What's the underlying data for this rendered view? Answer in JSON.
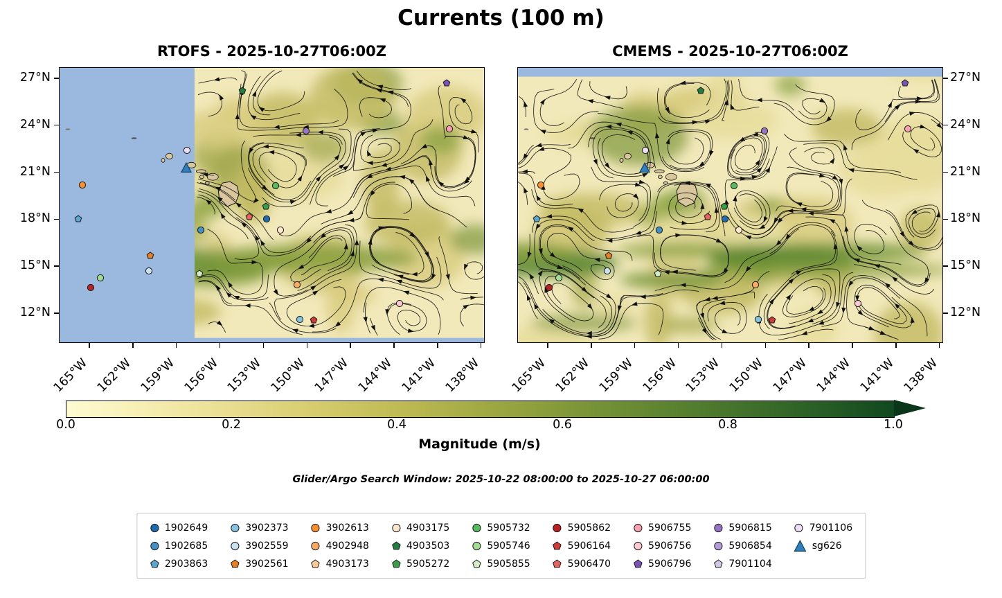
{
  "title": "Currents (100 m)",
  "maps": {
    "left": {
      "name": "RTOFS",
      "title": "RTOFS - 2025-10-27T06:00Z"
    },
    "right": {
      "name": "CMEMS",
      "title": "CMEMS - 2025-10-27T06:00Z"
    }
  },
  "axes": {
    "lat_ticks": [
      "27°N",
      "24°N",
      "21°N",
      "18°N",
      "15°N",
      "12°N"
    ],
    "lon_ticks": [
      "165°W",
      "162°W",
      "159°W",
      "156°W",
      "153°W",
      "150°W",
      "147°W",
      "144°W",
      "141°W",
      "138°W"
    ]
  },
  "colorbar": {
    "label": "Magnitude (m/s)",
    "ticks": [
      "0.0",
      "0.2",
      "0.4",
      "0.6",
      "0.8",
      "1.0"
    ],
    "min_color": "#fefbd2",
    "max_color": "#11481f"
  },
  "search_window": "Glider/Argo Search Window: 2025-10-22 08:00:00 to 2025-10-27 06:00:00",
  "colors": {
    "ocean_mask": "#9bb8de",
    "land": "#d9c69c",
    "streamline": "#111111"
  },
  "legend": {
    "entries": [
      {
        "id": "1902649",
        "shape": "circle",
        "color": "#1d6cb1"
      },
      {
        "id": "1902685",
        "shape": "circle",
        "color": "#4191c6"
      },
      {
        "id": "2903863",
        "shape": "pentagon",
        "color": "#5aa7d2"
      },
      {
        "id": "3902373",
        "shape": "circle",
        "color": "#85c3e2"
      },
      {
        "id": "3902559",
        "shape": "circle",
        "color": "#c8e2f0"
      },
      {
        "id": "3902561",
        "shape": "pentagon",
        "color": "#e87e1e"
      },
      {
        "id": "3902613",
        "shape": "circle",
        "color": "#fd8e28"
      },
      {
        "id": "4902948",
        "shape": "circle",
        "color": "#fdaa5e"
      },
      {
        "id": "4903173",
        "shape": "pentagon",
        "color": "#fdc992"
      },
      {
        "id": "4903175",
        "shape": "circle",
        "color": "#fee7cd"
      },
      {
        "id": "4903503",
        "shape": "pentagon",
        "color": "#1e8040"
      },
      {
        "id": "5905272",
        "shape": "pentagon",
        "color": "#35a048"
      },
      {
        "id": "5905732",
        "shape": "circle",
        "color": "#55bd5f"
      },
      {
        "id": "5905746",
        "shape": "circle",
        "color": "#a2db93"
      },
      {
        "id": "5905855",
        "shape": "pentagon",
        "color": "#d4eec3"
      },
      {
        "id": "5905862",
        "shape": "circle",
        "color": "#bc2020"
      },
      {
        "id": "5906164",
        "shape": "pentagon",
        "color": "#d23a3a"
      },
      {
        "id": "5906470",
        "shape": "pentagon",
        "color": "#e66361"
      },
      {
        "id": "5906755",
        "shape": "circle",
        "color": "#f9a0b0"
      },
      {
        "id": "5906756",
        "shape": "circle",
        "color": "#fcc8d1"
      },
      {
        "id": "5906796",
        "shape": "pentagon",
        "color": "#7c52b8"
      },
      {
        "id": "5906815",
        "shape": "circle",
        "color": "#9673c9"
      },
      {
        "id": "5906854",
        "shape": "circle",
        "color": "#b59bd9"
      },
      {
        "id": "7901104",
        "shape": "pentagon",
        "color": "#d5c5e8"
      },
      {
        "id": "7901106",
        "shape": "circle",
        "color": "#ecdff5"
      },
      {
        "id": "sg626",
        "shape": "triangle",
        "color": "#2f7fbe"
      }
    ]
  },
  "markers": [
    {
      "id": "5906796",
      "fx": 0.909,
      "fy": 0.055
    },
    {
      "id": "4903503",
      "fx": 0.429,
      "fy": 0.083
    },
    {
      "id": "5906815",
      "fx": 0.579,
      "fy": 0.229
    },
    {
      "id": "5906755",
      "fx": 0.915,
      "fy": 0.221
    },
    {
      "id": "7901106",
      "fx": 0.299,
      "fy": 0.299
    },
    {
      "id": "sg626",
      "fx": 0.297,
      "fy": 0.362
    },
    {
      "id": "3902613",
      "fx": 0.054,
      "fy": 0.425
    },
    {
      "id": "5905732",
      "fx": 0.507,
      "fy": 0.427
    },
    {
      "id": "5905272",
      "fx": 0.485,
      "fy": 0.503
    },
    {
      "id": "5906470",
      "fx": 0.446,
      "fy": 0.54
    },
    {
      "id": "1902649",
      "fx": 0.486,
      "fy": 0.548
    },
    {
      "id": "2903863",
      "fx": 0.044,
      "fy": 0.548
    },
    {
      "id": "1902685",
      "fx": 0.332,
      "fy": 0.588
    },
    {
      "id": "4903175",
      "fx": 0.519,
      "fy": 0.588
    },
    {
      "id": "3902561",
      "fx": 0.213,
      "fy": 0.681
    },
    {
      "id": "3902559",
      "fx": 0.21,
      "fy": 0.736
    },
    {
      "id": "5905855",
      "fx": 0.328,
      "fy": 0.746
    },
    {
      "id": "5905746",
      "fx": 0.096,
      "fy": 0.761
    },
    {
      "id": "5905862",
      "fx": 0.073,
      "fy": 0.797
    },
    {
      "id": "4902948",
      "fx": 0.558,
      "fy": 0.786
    },
    {
      "id": "5906756",
      "fx": 0.798,
      "fy": 0.854
    },
    {
      "id": "3902373",
      "fx": 0.564,
      "fy": 0.912
    },
    {
      "id": "5906164",
      "fx": 0.597,
      "fy": 0.915
    }
  ]
}
